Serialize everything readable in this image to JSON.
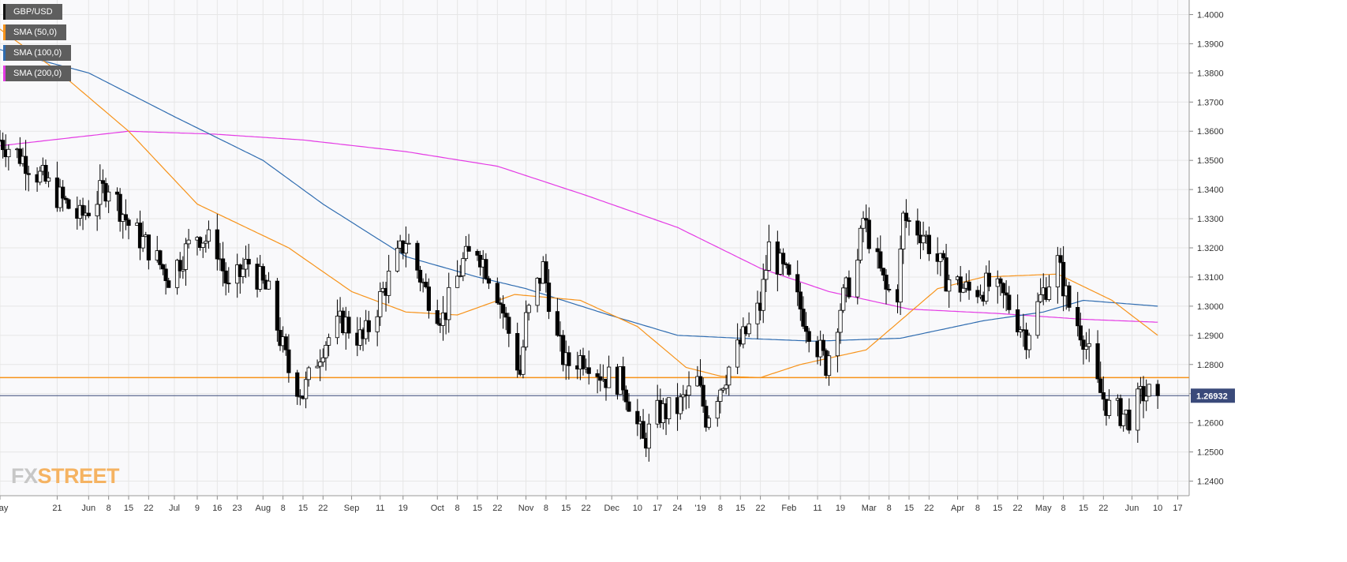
{
  "chart_data": {
    "type": "candlestick",
    "symbol": "GBP/USD",
    "last_price": "1.26932",
    "y_range": [
      1.235,
      1.405
    ],
    "y_ticks": [
      "1.4000",
      "1.3900",
      "1.3800",
      "1.3700",
      "1.3600",
      "1.3500",
      "1.3400",
      "1.3300",
      "1.3200",
      "1.3100",
      "1.3000",
      "1.2900",
      "1.2800",
      "1.2700",
      "1.2600",
      "1.2500",
      "1.2400"
    ],
    "x_ticks": [
      {
        "date": "2018-05-01",
        "label": "May"
      },
      {
        "date": "2018-05-21",
        "label": "21"
      },
      {
        "date": "2018-06-01",
        "label": "Jun"
      },
      {
        "date": "2018-06-08",
        "label": "8"
      },
      {
        "date": "2018-06-15",
        "label": "15"
      },
      {
        "date": "2018-06-22",
        "label": "22"
      },
      {
        "date": "2018-07-01",
        "label": "Jul"
      },
      {
        "date": "2018-07-09",
        "label": "9"
      },
      {
        "date": "2018-07-16",
        "label": "16"
      },
      {
        "date": "2018-07-23",
        "label": "23"
      },
      {
        "date": "2018-08-01",
        "label": "Aug"
      },
      {
        "date": "2018-08-08",
        "label": "8"
      },
      {
        "date": "2018-08-15",
        "label": "15"
      },
      {
        "date": "2018-08-22",
        "label": "22"
      },
      {
        "date": "2018-09-01",
        "label": "Sep"
      },
      {
        "date": "2018-09-11",
        "label": "11"
      },
      {
        "date": "2018-09-19",
        "label": "19"
      },
      {
        "date": "2018-10-01",
        "label": "Oct"
      },
      {
        "date": "2018-10-08",
        "label": "8"
      },
      {
        "date": "2018-10-15",
        "label": "15"
      },
      {
        "date": "2018-10-22",
        "label": "22"
      },
      {
        "date": "2018-11-01",
        "label": "Nov"
      },
      {
        "date": "2018-11-08",
        "label": "8"
      },
      {
        "date": "2018-11-15",
        "label": "15"
      },
      {
        "date": "2018-11-22",
        "label": "22"
      },
      {
        "date": "2018-12-01",
        "label": "Dec"
      },
      {
        "date": "2018-12-10",
        "label": "10"
      },
      {
        "date": "2018-12-17",
        "label": "17"
      },
      {
        "date": "2018-12-24",
        "label": "24"
      },
      {
        "date": "2019-01-01",
        "label": "'19"
      },
      {
        "date": "2019-01-08",
        "label": "8"
      },
      {
        "date": "2019-01-15",
        "label": "15"
      },
      {
        "date": "2019-01-22",
        "label": "22"
      },
      {
        "date": "2019-02-01",
        "label": "Feb"
      },
      {
        "date": "2019-02-11",
        "label": "11"
      },
      {
        "date": "2019-02-19",
        "label": "19"
      },
      {
        "date": "2019-03-01",
        "label": "Mar"
      },
      {
        "date": "2019-03-08",
        "label": "8"
      },
      {
        "date": "2019-03-15",
        "label": "15"
      },
      {
        "date": "2019-03-22",
        "label": "22"
      },
      {
        "date": "2019-04-01",
        "label": "Apr"
      },
      {
        "date": "2019-04-08",
        "label": "8"
      },
      {
        "date": "2019-04-15",
        "label": "15"
      },
      {
        "date": "2019-04-22",
        "label": "22"
      },
      {
        "date": "2019-05-01",
        "label": "May"
      },
      {
        "date": "2019-05-08",
        "label": "8"
      },
      {
        "date": "2019-05-15",
        "label": "15"
      },
      {
        "date": "2019-05-22",
        "label": "22"
      },
      {
        "date": "2019-06-01",
        "label": "Jun"
      },
      {
        "date": "2019-06-10",
        "label": "10"
      },
      {
        "date": "2019-06-17",
        "label": "17"
      }
    ],
    "x_domain": [
      "2018-05-01",
      "2019-06-21"
    ],
    "horizontal_lines": [
      {
        "value": 1.2755,
        "color": "#f7931a"
      },
      {
        "value": 1.2693,
        "color": "#3a4a7a"
      }
    ],
    "price_anchors": [
      [
        "2018-05-01",
        1.357
      ],
      [
        "2018-05-10",
        1.35
      ],
      [
        "2018-05-21",
        1.338
      ],
      [
        "2018-05-29",
        1.33
      ],
      [
        "2018-06-08",
        1.342
      ],
      [
        "2018-06-15",
        1.328
      ],
      [
        "2018-06-22",
        1.32
      ],
      [
        "2018-06-29",
        1.31
      ],
      [
        "2018-07-09",
        1.325
      ],
      [
        "2018-07-16",
        1.32
      ],
      [
        "2018-07-20",
        1.305
      ],
      [
        "2018-07-27",
        1.315
      ],
      [
        "2018-08-03",
        1.304
      ],
      [
        "2018-08-10",
        1.278
      ],
      [
        "2018-08-15",
        1.27
      ],
      [
        "2018-08-22",
        1.287
      ],
      [
        "2018-08-29",
        1.295
      ],
      [
        "2018-09-05",
        1.288
      ],
      [
        "2018-09-12",
        1.305
      ],
      [
        "2018-09-20",
        1.323
      ],
      [
        "2018-09-27",
        1.305
      ],
      [
        "2018-10-03",
        1.296
      ],
      [
        "2018-10-10",
        1.315
      ],
      [
        "2018-10-15",
        1.32
      ],
      [
        "2018-10-22",
        1.305
      ],
      [
        "2018-10-30",
        1.277
      ],
      [
        "2018-11-01",
        1.295
      ],
      [
        "2018-11-07",
        1.313
      ],
      [
        "2018-11-12",
        1.288
      ],
      [
        "2018-11-15",
        1.28
      ],
      [
        "2018-11-22",
        1.283
      ],
      [
        "2018-11-28",
        1.276
      ],
      [
        "2018-12-05",
        1.274
      ],
      [
        "2018-12-12",
        1.253
      ],
      [
        "2018-12-17",
        1.263
      ],
      [
        "2018-12-24",
        1.265
      ],
      [
        "2018-12-31",
        1.274
      ],
      [
        "2019-01-03",
        1.262
      ],
      [
        "2019-01-09",
        1.275
      ],
      [
        "2019-01-15",
        1.287
      ],
      [
        "2019-01-22",
        1.3
      ],
      [
        "2019-01-25",
        1.32
      ],
      [
        "2019-01-31",
        1.31
      ],
      [
        "2019-02-07",
        1.295
      ],
      [
        "2019-02-14",
        1.28
      ],
      [
        "2019-02-19",
        1.3
      ],
      [
        "2019-02-25",
        1.315
      ],
      [
        "2019-02-27",
        1.33
      ],
      [
        "2019-03-07",
        1.305
      ],
      [
        "2019-03-11",
        1.305
      ],
      [
        "2019-03-13",
        1.33
      ],
      [
        "2019-03-20",
        1.325
      ],
      [
        "2019-03-28",
        1.31
      ],
      [
        "2019-04-05",
        1.305
      ],
      [
        "2019-04-12",
        1.307
      ],
      [
        "2019-04-18",
        1.302
      ],
      [
        "2019-04-25",
        1.29
      ],
      [
        "2019-05-01",
        1.305
      ],
      [
        "2019-05-06",
        1.315
      ],
      [
        "2019-05-10",
        1.3
      ],
      [
        "2019-05-15",
        1.29
      ],
      [
        "2019-05-20",
        1.272
      ],
      [
        "2019-05-24",
        1.265
      ],
      [
        "2019-05-31",
        1.262
      ],
      [
        "2019-06-05",
        1.27
      ],
      [
        "2019-06-10",
        1.2693
      ]
    ],
    "sma_50_anchors": [
      [
        "2018-05-01",
        1.395
      ],
      [
        "2018-05-22",
        1.38
      ],
      [
        "2018-06-15",
        1.36
      ],
      [
        "2018-07-09",
        1.335
      ],
      [
        "2018-08-10",
        1.32
      ],
      [
        "2018-09-01",
        1.305
      ],
      [
        "2018-09-20",
        1.298
      ],
      [
        "2018-10-08",
        1.297
      ],
      [
        "2018-10-28",
        1.304
      ],
      [
        "2018-11-20",
        1.302
      ],
      [
        "2018-12-10",
        1.293
      ],
      [
        "2018-12-27",
        1.279
      ],
      [
        "2019-01-08",
        1.276
      ],
      [
        "2019-01-22",
        1.2755
      ],
      [
        "2019-02-05",
        1.28
      ],
      [
        "2019-02-28",
        1.285
      ],
      [
        "2019-03-25",
        1.306
      ],
      [
        "2019-04-10",
        1.31
      ],
      [
        "2019-05-06",
        1.311
      ],
      [
        "2019-05-25",
        1.302
      ],
      [
        "2019-06-10",
        1.29
      ]
    ],
    "sma_100_anchors": [
      [
        "2018-05-01",
        1.388
      ],
      [
        "2018-06-01",
        1.38
      ],
      [
        "2018-07-01",
        1.365
      ],
      [
        "2018-08-01",
        1.35
      ],
      [
        "2018-08-22",
        1.335
      ],
      [
        "2018-09-20",
        1.317
      ],
      [
        "2018-10-15",
        1.31
      ],
      [
        "2018-11-01",
        1.306
      ],
      [
        "2018-11-30",
        1.297
      ],
      [
        "2018-12-24",
        1.29
      ],
      [
        "2019-01-15",
        1.289
      ],
      [
        "2019-02-10",
        1.288
      ],
      [
        "2019-03-12",
        1.289
      ],
      [
        "2019-04-10",
        1.295
      ],
      [
        "2019-05-01",
        1.298
      ],
      [
        "2019-05-15",
        1.302
      ],
      [
        "2019-06-10",
        1.3
      ]
    ],
    "sma_200_anchors": [
      [
        "2018-05-01",
        1.355
      ],
      [
        "2018-06-15",
        1.36
      ],
      [
        "2018-07-15",
        1.359
      ],
      [
        "2018-08-15",
        1.357
      ],
      [
        "2018-09-20",
        1.353
      ],
      [
        "2018-10-22",
        1.348
      ],
      [
        "2018-11-22",
        1.338
      ],
      [
        "2018-12-24",
        1.327
      ],
      [
        "2019-01-22",
        1.313
      ],
      [
        "2019-02-15",
        1.305
      ],
      [
        "2019-03-15",
        1.299
      ],
      [
        "2019-04-15",
        1.2975
      ],
      [
        "2019-05-15",
        1.2955
      ],
      [
        "2019-06-10",
        1.2945
      ]
    ]
  },
  "legend": [
    {
      "label": "GBP/USD",
      "color": "#111111"
    },
    {
      "label": "SMA (50,0)",
      "color": "#f7931a"
    },
    {
      "label": "SMA (100,0)",
      "color": "#2f6cb0"
    },
    {
      "label": "SMA (200,0)",
      "color": "#e43be4"
    }
  ],
  "colors": {
    "grid": "#e6e6e6",
    "up_candle": "#ffffff",
    "down_candle": "#000000",
    "price_label_bg": "#3a4a7a",
    "sma50": "#f7931a",
    "sma100": "#2f6cb0",
    "sma200": "#e43be4"
  },
  "logo": {
    "part1": "FX",
    "part2": "STREET"
  }
}
